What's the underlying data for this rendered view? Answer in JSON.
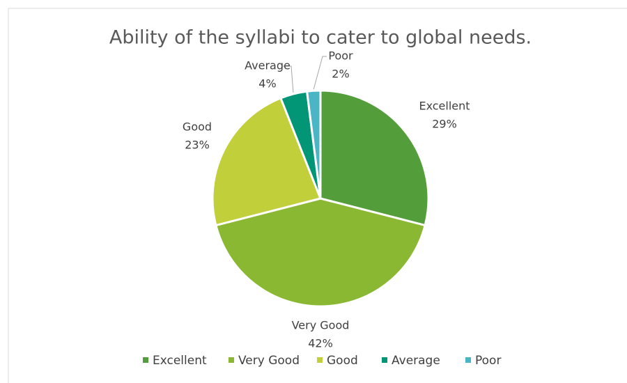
{
  "chart_data": {
    "type": "pie",
    "title": "Ability of the syllabi to cater to global needs.",
    "categories": [
      "Excellent",
      "Very Good",
      "Good",
      "Average",
      "Poor"
    ],
    "values": [
      29,
      42,
      23,
      4,
      2
    ],
    "value_labels": [
      "29%",
      "42%",
      "23%",
      "4%",
      "2%"
    ],
    "colors": [
      "#539e3a",
      "#8ab833",
      "#c0cf3a",
      "#029676",
      "#4ab5c4"
    ],
    "legend": "bottom"
  }
}
